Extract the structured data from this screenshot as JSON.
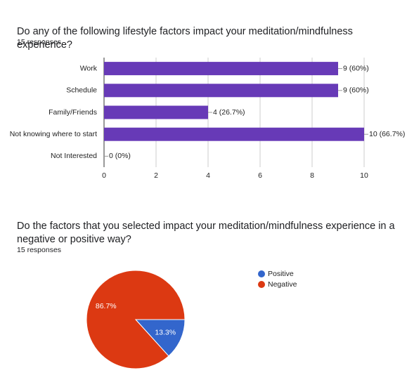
{
  "chart_data": [
    {
      "type": "hbar",
      "title": "Do any of the following lifestyle factors impact your meditation/mindfulness experience?",
      "subtitle": "15 responses",
      "categories": [
        "Work",
        "Schedule",
        "Family/Friends",
        "Not knowing where to start",
        "Not Interested"
      ],
      "values": [
        9,
        9,
        4,
        10,
        0
      ],
      "value_labels": [
        "9 (60%)",
        "9 (60%)",
        "4 (26.7%)",
        "10 (66.7%)",
        "0 (0%)"
      ],
      "color": "#673ab7",
      "xlim": [
        0,
        10
      ],
      "xticks": [
        0,
        2,
        4,
        6,
        8,
        10
      ],
      "grid": true
    },
    {
      "type": "pie",
      "title": "Do the factors that you selected impact your meditation/mindfulness experience in a negative or positive way?",
      "subtitle": "15 responses",
      "categories": [
        "Positive",
        "Negative"
      ],
      "values": [
        13.3,
        86.7
      ],
      "value_labels": [
        "13.3%",
        "86.7%"
      ],
      "colors": [
        "#3366cc",
        "#dc3912"
      ]
    }
  ]
}
